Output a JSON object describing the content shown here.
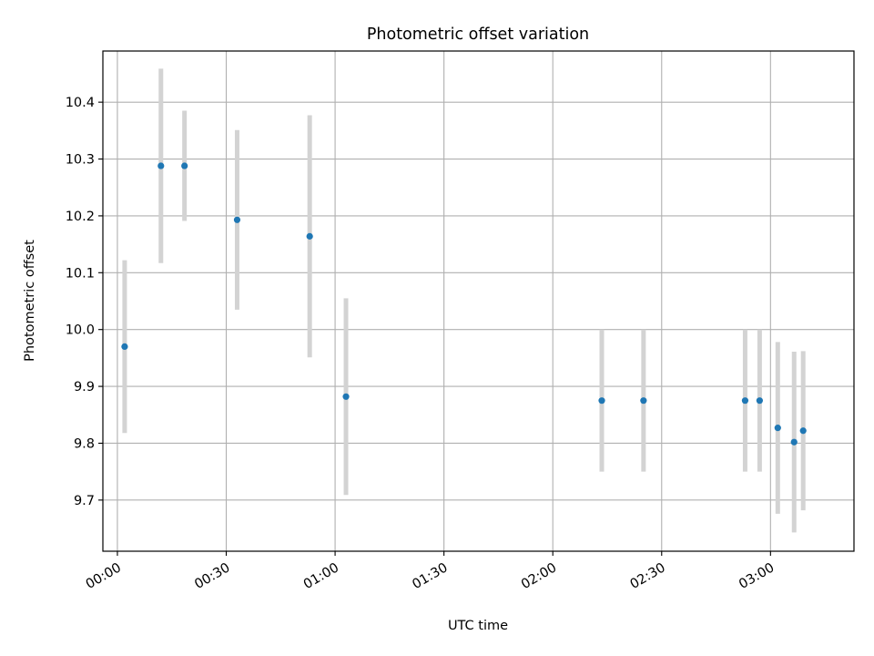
{
  "chart_data": {
    "type": "scatter",
    "title": "Photometric offset variation",
    "xlabel": "UTC time",
    "ylabel": "Photometric offset",
    "x_axis": "time (HH:MM, minutes since 00:00)",
    "xlim": [
      -4,
      203
    ],
    "ylim": [
      9.61,
      10.49
    ],
    "grid": true,
    "xticks": [
      {
        "value": 0,
        "label": "00:00"
      },
      {
        "value": 30,
        "label": "00:30"
      },
      {
        "value": 60,
        "label": "01:00"
      },
      {
        "value": 90,
        "label": "01:30"
      },
      {
        "value": 120,
        "label": "02:00"
      },
      {
        "value": 150,
        "label": "02:30"
      },
      {
        "value": 180,
        "label": "03:00"
      }
    ],
    "yticks": [
      {
        "value": 9.7,
        "label": "9.7"
      },
      {
        "value": 9.8,
        "label": "9.8"
      },
      {
        "value": 9.9,
        "label": "9.9"
      },
      {
        "value": 10.0,
        "label": "10.0"
      },
      {
        "value": 10.1,
        "label": "10.1"
      },
      {
        "value": 10.2,
        "label": "10.2"
      },
      {
        "value": 10.3,
        "label": "10.3"
      },
      {
        "value": 10.4,
        "label": "10.4"
      }
    ],
    "point_color": "#1f77b4",
    "errorbar_color": "#d3d3d3",
    "series": [
      {
        "points": [
          {
            "x": 2,
            "y": 9.97,
            "err": 0.152
          },
          {
            "x": 12,
            "y": 10.288,
            "err": 0.171
          },
          {
            "x": 18.5,
            "y": 10.288,
            "err": 0.097
          },
          {
            "x": 33,
            "y": 10.193,
            "err": 0.158
          },
          {
            "x": 53,
            "y": 10.164,
            "err": 0.213
          },
          {
            "x": 63,
            "y": 9.882,
            "err": 0.173
          },
          {
            "x": 133.5,
            "y": 9.875,
            "err": 0.125
          },
          {
            "x": 145,
            "y": 9.875,
            "err": 0.125
          },
          {
            "x": 173,
            "y": 9.875,
            "err": 0.125
          },
          {
            "x": 177,
            "y": 9.875,
            "err": 0.125
          },
          {
            "x": 182,
            "y": 9.827,
            "err": 0.151
          },
          {
            "x": 186.5,
            "y": 9.802,
            "err": 0.159
          },
          {
            "x": 189,
            "y": 9.822,
            "err": 0.14
          }
        ]
      }
    ]
  }
}
